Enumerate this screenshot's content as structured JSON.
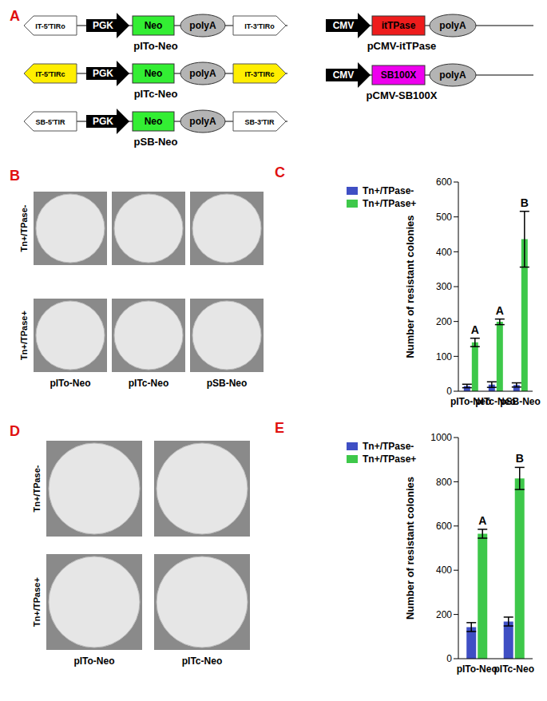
{
  "diagram": {
    "panel": "A",
    "constructs": [
      {
        "name": "pITo-Neo",
        "elements": [
          {
            "label": "IT-5'TIRo",
            "color": "#ffffff"
          },
          {
            "label": "PGK",
            "color": "#000000"
          },
          {
            "label": "Neo",
            "color": "#33ee33"
          },
          {
            "label": "polyA",
            "color": "#b4b4b4"
          },
          {
            "label": "IT-3'TIRo",
            "color": "#ffffff"
          }
        ]
      },
      {
        "name": "pITc-Neo",
        "elements": [
          {
            "label": "IT-5'TIRc",
            "color": "#ffee00"
          },
          {
            "label": "PGK",
            "color": "#000000"
          },
          {
            "label": "Neo",
            "color": "#33ee33"
          },
          {
            "label": "polyA",
            "color": "#b4b4b4"
          },
          {
            "label": "IT-3'TIRc",
            "color": "#ffee00"
          }
        ]
      },
      {
        "name": "pSB-Neo",
        "elements": [
          {
            "label": "SB-5'TIR",
            "color": "#ffffff"
          },
          {
            "label": "PGK",
            "color": "#000000"
          },
          {
            "label": "Neo",
            "color": "#33ee33"
          },
          {
            "label": "polyA",
            "color": "#b4b4b4"
          },
          {
            "label": "SB-3'TIR",
            "color": "#ffffff"
          }
        ]
      },
      {
        "name": "pCMV-itTPase",
        "elements": [
          {
            "label": "CMV",
            "color": "#000000"
          },
          {
            "label": "itTPase",
            "color": "#ee1c1c"
          },
          {
            "label": "polyA",
            "color": "#b4b4b4"
          }
        ]
      },
      {
        "name": "pCMV-SB100X",
        "elements": [
          {
            "label": "CMV",
            "color": "#000000"
          },
          {
            "label": "SB100X",
            "color": "#ee00ee"
          },
          {
            "label": "polyA",
            "color": "#b4b4b4"
          }
        ]
      }
    ]
  },
  "plates": [
    {
      "panel": "B",
      "rows": [
        "Tn+/TPase-",
        "Tn+/TPase+"
      ],
      "columns": [
        "pITo-Neo",
        "pITc-Neo",
        "pSB-Neo"
      ]
    },
    {
      "panel": "D",
      "rows": [
        "Tn+/TPase-",
        "Tn+/TPase+"
      ],
      "columns": [
        "pITo-Neo",
        "pITc-Neo"
      ]
    }
  ],
  "chart_data": [
    {
      "panel": "C",
      "type": "bar",
      "y_label": "Number of resistant colonies",
      "categories": [
        "pITo-Neo",
        "pITc-Neo",
        "pSB-Neo"
      ],
      "series": [
        {
          "name": "Tn+/TPase-",
          "color": "#3f4fc4",
          "values": [
            15,
            19,
            18
          ],
          "errors": [
            5,
            8,
            6
          ]
        },
        {
          "name": "Tn+/TPase+",
          "color": "#3ec84a",
          "values": [
            140,
            199,
            436
          ],
          "errors": [
            12,
            8,
            80
          ],
          "annotations": [
            "A",
            "A",
            "B"
          ]
        }
      ],
      "ylim": [
        0,
        600
      ],
      "yticks": [
        0,
        100,
        200,
        300,
        400,
        500,
        600
      ],
      "grid": false,
      "legend": "top-left"
    },
    {
      "panel": "E",
      "type": "bar",
      "y_label": "Number of resistant colonies",
      "categories": [
        "pITo-Neo",
        "pITc-Neo"
      ],
      "series": [
        {
          "name": "Tn+/TPase-",
          "color": "#3f4fc4",
          "values": [
            143,
            168
          ],
          "errors": [
            20,
            20
          ]
        },
        {
          "name": "Tn+/TPase+",
          "color": "#3ec84a",
          "values": [
            565,
            815
          ],
          "errors": [
            20,
            50
          ],
          "annotations": [
            "A",
            "B"
          ]
        }
      ],
      "ylim": [
        0,
        1000
      ],
      "yticks": [
        0,
        200,
        400,
        600,
        800,
        1000
      ],
      "grid": false,
      "legend": "top-left"
    }
  ]
}
